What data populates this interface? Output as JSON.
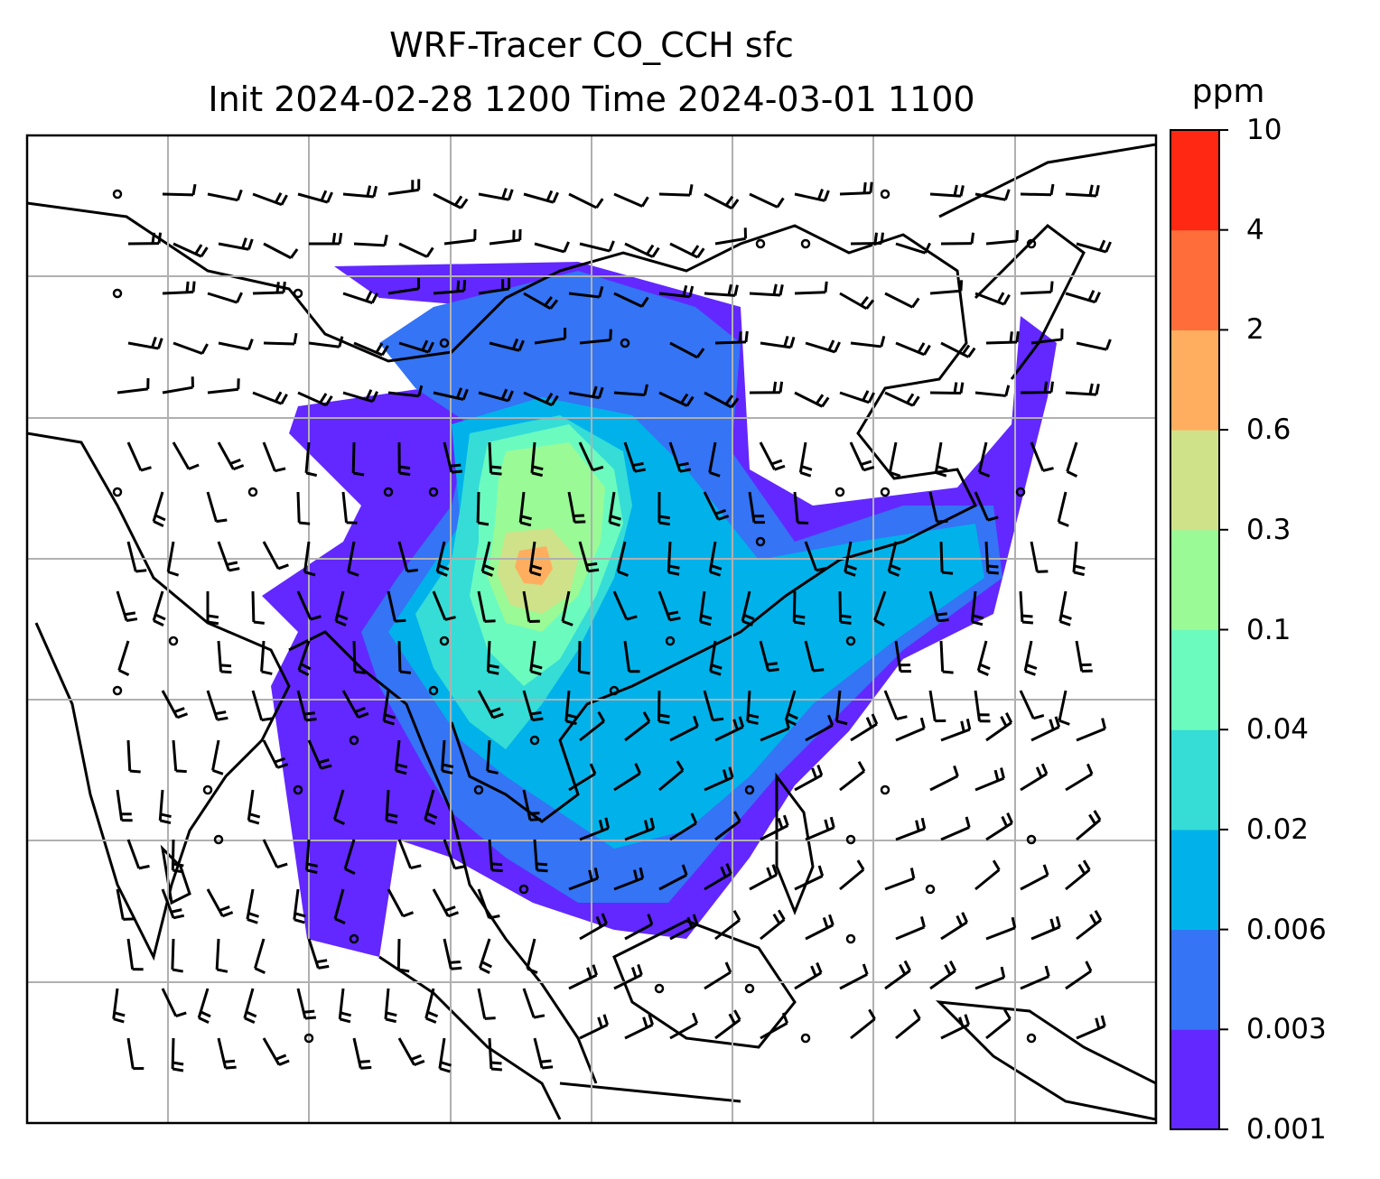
{
  "title": {
    "line1": "WRF-Tracer CO_CCH sfc",
    "line2": "Init 2024-02-28 1200 Time 2024-03-01 1100"
  },
  "map": {
    "field": "CO_CCH",
    "level": "sfc",
    "region": "East and Southeast Asia",
    "gridlines": true,
    "coastlines": true,
    "wind_barbs": true,
    "plume_description": "tracer plume over China and Southeast Asia"
  },
  "colorbar": {
    "unit": "ppm",
    "orientation": "vertical",
    "placement": "right",
    "levels": [
      "0.001",
      "0.003",
      "0.006",
      "0.02",
      "0.04",
      "0.1",
      "0.3",
      "0.6",
      "2",
      "4",
      "10"
    ],
    "colors": [
      "#6228ff",
      "#3474f5",
      "#01b2ea",
      "#35ddd6",
      "#6cfbbf",
      "#9afa96",
      "#cfe289",
      "#ffae60",
      "#ff6d3a",
      "#ff2812"
    ]
  }
}
